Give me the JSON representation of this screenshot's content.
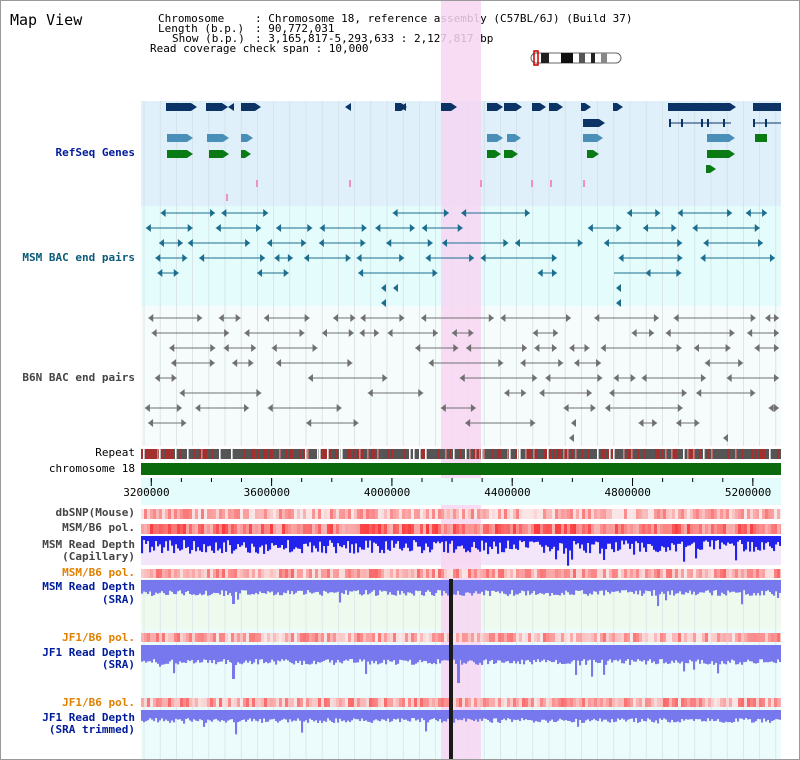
{
  "page": {
    "title": "Map View"
  },
  "header": {
    "chromosome_key": "Chromosome",
    "chromosome_val": ": Chromosome 18, reference assembly (C57BL/6J) (Build 37)",
    "length_key": "Length (b.p.)",
    "length_val": ": 90,772,031",
    "show_key": "Show (b.p.)",
    "show_val": ": 3,165,817-5,293,633 : 2,127,817 bp",
    "coverage": "Read coverage check span : 10,000"
  },
  "tracks": {
    "refseq": "RefSeq Genes",
    "msm_bac": "MSM BAC end pairs",
    "b6n_bac": "B6N BAC end pairs",
    "repeat": "Repeat",
    "chromosome": "chromosome 18",
    "dbsnp": "dbSNP(Mouse)",
    "msm_pol": "MSM/B6 pol.",
    "msm_depth_cap_1": "MSM Read Depth",
    "msm_depth_cap_2": "(Capillary)",
    "msm_pol2": "MSM/B6 pol.",
    "msm_sra_1": "MSM Read Depth",
    "msm_sra_2": "(SRA)",
    "jf1_pol": "JF1/B6 pol.",
    "jf1_sra_1": "JF1 Read Depth",
    "jf1_sra_2": "(SRA)",
    "jf1_pol2": "JF1/B6 pol.",
    "jf1_trim_1": "JF1 Read Depth",
    "jf1_trim_2": "(SRA trimmed)"
  },
  "axis": {
    "ticks": [
      "3200000",
      "3600000",
      "4000000",
      "4400000",
      "4800000",
      "5200000"
    ]
  },
  "colors": {
    "refseq_bg": "#dff0fa",
    "bac_bg": "#e4fcfc",
    "highlight": "#f7d6f2",
    "gene_navy": "#0b3366",
    "gene_blue": "#4a8fb8",
    "gene_green": "#0a7a14",
    "msm_bac": "#1d6e8e",
    "b6n_bac": "#707070",
    "chrom_green": "#0b6a0b",
    "depth_blue": "#2222ee",
    "sra_blue": "#7777ee",
    "msm_label": "#0a5a7a",
    "b6n_label": "#444444",
    "sra_label": "#001b9a",
    "pol_label": "#e08000"
  }
}
